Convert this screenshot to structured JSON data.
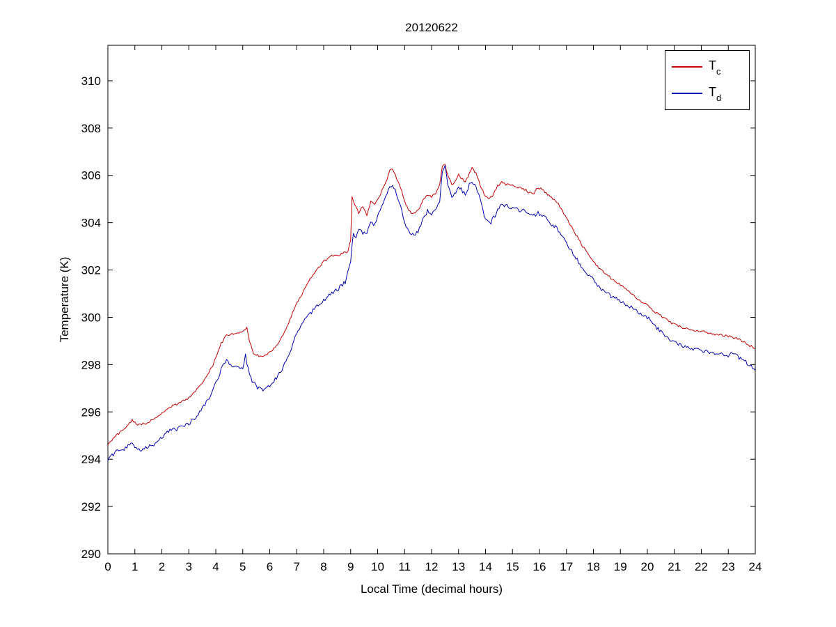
{
  "chart_data": {
    "type": "line",
    "title": "20120622",
    "xlabel": "Local Time (decimal hours)",
    "ylabel": "Temperature (K)",
    "xlim": [
      0,
      24
    ],
    "ylim": [
      290,
      311.5
    ],
    "xticks": [
      0,
      1,
      2,
      3,
      4,
      5,
      6,
      7,
      8,
      9,
      10,
      11,
      12,
      13,
      14,
      15,
      16,
      17,
      18,
      19,
      20,
      21,
      22,
      23,
      24
    ],
    "yticks": [
      290,
      292,
      294,
      296,
      298,
      300,
      302,
      304,
      306,
      308,
      310
    ],
    "grid": false,
    "legend_position": "top-right",
    "background": "#ffffff",
    "axis_color": "#000000",
    "series": [
      {
        "name": "T_c",
        "label_base": "T",
        "label_sub": "c",
        "color": "#c00000",
        "noise": 0.05,
        "x": [
          0,
          0.3,
          0.6,
          0.9,
          1.1,
          1.4,
          1.7,
          2,
          2.3,
          2.6,
          3,
          3.3,
          3.6,
          3.9,
          4.2,
          4.4,
          4.6,
          4.8,
          5,
          5.15,
          5.25,
          5.4,
          5.6,
          5.8,
          6,
          6.3,
          6.6,
          7,
          7.3,
          7.6,
          8,
          8.3,
          8.6,
          8.9,
          9,
          9.05,
          9.15,
          9.3,
          9.45,
          9.6,
          9.75,
          9.9,
          10.1,
          10.3,
          10.45,
          10.55,
          10.7,
          10.85,
          11,
          11.15,
          11.3,
          11.5,
          11.7,
          11.85,
          12,
          12.15,
          12.3,
          12.4,
          12.5,
          12.6,
          12.75,
          12.9,
          13,
          13.1,
          13.25,
          13.4,
          13.5,
          13.65,
          13.8,
          14,
          14.15,
          14.3,
          14.45,
          14.6,
          14.8,
          15,
          15.2,
          15.4,
          15.6,
          15.8,
          15.95,
          16.1,
          16.3,
          16.5,
          16.7,
          16.9,
          17.1,
          17.3,
          17.6,
          17.9,
          18.2,
          18.5,
          18.8,
          19.1,
          19.4,
          19.7,
          20,
          20.3,
          20.6,
          20.9,
          21.2,
          21.5,
          21.8,
          22.1,
          22.4,
          22.7,
          23,
          23.3,
          23.6,
          23.8,
          24
        ],
        "y": [
          294.65,
          295.0,
          295.3,
          295.65,
          295.45,
          295.5,
          295.7,
          295.95,
          296.2,
          296.35,
          296.6,
          296.95,
          297.4,
          298.0,
          298.9,
          299.25,
          299.3,
          299.3,
          299.4,
          299.6,
          299.0,
          298.5,
          298.35,
          298.4,
          298.5,
          298.9,
          299.5,
          300.6,
          301.2,
          301.8,
          302.35,
          302.6,
          302.65,
          302.8,
          303.3,
          305.1,
          304.8,
          304.4,
          304.7,
          304.3,
          304.9,
          304.8,
          305.2,
          305.7,
          306.2,
          306.3,
          305.9,
          305.5,
          304.9,
          304.5,
          304.35,
          304.5,
          305.0,
          305.2,
          305.1,
          305.2,
          305.6,
          306.4,
          306.45,
          306.0,
          305.6,
          305.8,
          306.05,
          305.9,
          305.7,
          306.1,
          306.3,
          306.1,
          305.6,
          305.1,
          305.0,
          305.2,
          305.55,
          305.7,
          305.6,
          305.6,
          305.5,
          305.45,
          305.3,
          305.25,
          305.5,
          305.4,
          305.2,
          305.0,
          304.8,
          304.4,
          304.0,
          303.6,
          303.0,
          302.5,
          302.1,
          301.8,
          301.5,
          301.3,
          301.0,
          300.7,
          300.5,
          300.2,
          300.0,
          299.75,
          299.6,
          299.5,
          299.45,
          299.4,
          299.3,
          299.25,
          299.2,
          299.1,
          298.95,
          298.8,
          298.7
        ]
      },
      {
        "name": "T_d",
        "label_base": "T",
        "label_sub": "d",
        "color": "#0000b0",
        "noise": 0.09,
        "x": [
          0,
          0.3,
          0.6,
          0.85,
          1.0,
          1.2,
          1.5,
          1.8,
          2,
          2.3,
          2.6,
          3,
          3.3,
          3.6,
          3.9,
          4.2,
          4.4,
          4.6,
          4.8,
          5,
          5.1,
          5.2,
          5.35,
          5.55,
          5.75,
          6,
          6.3,
          6.6,
          7,
          7.3,
          7.6,
          8,
          8.2,
          8.5,
          8.8,
          9,
          9.1,
          9.2,
          9.3,
          9.45,
          9.6,
          9.75,
          9.9,
          10.1,
          10.3,
          10.45,
          10.55,
          10.7,
          10.85,
          11,
          11.15,
          11.3,
          11.5,
          11.7,
          11.85,
          12,
          12.15,
          12.3,
          12.4,
          12.5,
          12.6,
          12.75,
          12.9,
          13,
          13.1,
          13.25,
          13.4,
          13.5,
          13.65,
          13.8,
          14,
          14.15,
          14.3,
          14.45,
          14.6,
          14.8,
          15,
          15.2,
          15.4,
          15.6,
          15.8,
          15.95,
          16.1,
          16.3,
          16.5,
          16.7,
          16.9,
          17.1,
          17.3,
          17.6,
          17.9,
          18.2,
          18.5,
          18.8,
          19.1,
          19.4,
          19.7,
          20,
          20.3,
          20.6,
          20.9,
          21.2,
          21.5,
          21.8,
          22.1,
          22.4,
          22.7,
          23,
          23.2,
          23.4,
          23.6,
          23.8,
          24
        ],
        "y": [
          294.0,
          294.3,
          294.4,
          294.7,
          294.55,
          294.4,
          294.5,
          294.7,
          294.95,
          295.2,
          295.3,
          295.5,
          295.85,
          296.3,
          296.9,
          297.8,
          298.15,
          298.0,
          297.85,
          297.8,
          298.4,
          297.8,
          297.3,
          297.0,
          296.9,
          297.1,
          297.5,
          298.1,
          299.3,
          299.9,
          300.3,
          300.7,
          301.0,
          301.15,
          301.5,
          302.3,
          303.6,
          303.3,
          303.8,
          303.5,
          303.6,
          304.0,
          303.9,
          304.6,
          305.1,
          305.5,
          305.6,
          305.2,
          304.7,
          304.0,
          303.6,
          303.5,
          303.6,
          304.2,
          304.5,
          304.4,
          304.5,
          304.9,
          306.2,
          306.35,
          305.6,
          305.1,
          305.3,
          305.5,
          305.4,
          305.2,
          305.6,
          305.7,
          305.5,
          305.0,
          304.1,
          303.95,
          304.2,
          304.5,
          304.8,
          304.7,
          304.6,
          304.55,
          304.5,
          304.35,
          304.3,
          304.4,
          304.35,
          304.1,
          303.9,
          303.7,
          303.3,
          302.9,
          302.6,
          302.1,
          301.7,
          301.3,
          301.0,
          300.8,
          300.6,
          300.4,
          300.2,
          300.0,
          299.6,
          299.3,
          299.0,
          298.85,
          298.7,
          298.65,
          298.6,
          298.5,
          298.45,
          298.4,
          298.5,
          298.3,
          298.15,
          298.0,
          297.75
        ]
      }
    ]
  }
}
